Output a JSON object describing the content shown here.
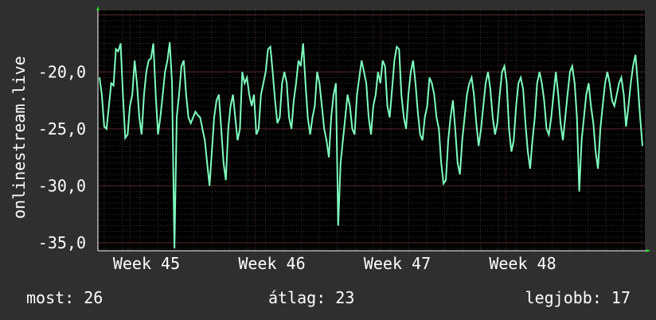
{
  "chart_data": {
    "type": "line",
    "ylabel": "onlinestream.live",
    "ylim": [
      -35.7,
      -14.6
    ],
    "yticks": [
      -20,
      -25,
      -30,
      -35
    ],
    "ytick_labels": [
      "-20,0",
      "-25,0",
      "-30,0",
      "-35,0"
    ],
    "xtick_labels": [
      "Week 45",
      "Week 46",
      "Week 47",
      "Week 48"
    ],
    "grid": true,
    "line_color": "#7fffbf",
    "series": [
      {
        "values": [
          -20.5,
          -22,
          -24.8,
          -25,
          -23,
          -21,
          -21.2,
          -18,
          -18.2,
          -17.5,
          -22,
          -25.8,
          -25.5,
          -23,
          -22,
          -19,
          -21,
          -24,
          -25.5,
          -22,
          -20,
          -19,
          -18.8,
          -17.5,
          -22,
          -25.5,
          -24,
          -22,
          -20,
          -19,
          -17.4,
          -21,
          -35.5,
          -24,
          -22,
          -19.5,
          -19,
          -22,
          -24,
          -24.5,
          -24,
          -23.5,
          -23.8,
          -24,
          -25,
          -26,
          -28,
          -30,
          -27,
          -24,
          -22.5,
          -22,
          -25,
          -28,
          -29.5,
          -25,
          -23,
          -22,
          -24,
          -26,
          -25,
          -20,
          -21,
          -20.5,
          -22,
          -23,
          -22,
          -25.5,
          -25,
          -22,
          -21,
          -20,
          -18,
          -17.8,
          -20,
          -22.5,
          -24.5,
          -24,
          -21,
          -20,
          -21,
          -24,
          -25,
          -22.5,
          -21,
          -19,
          -19.5,
          -17.5,
          -21,
          -24,
          -25.5,
          -24,
          -23,
          -20,
          -21,
          -23,
          -25,
          -26,
          -27.5,
          -24,
          -22,
          -21,
          -33.5,
          -28,
          -26,
          -24,
          -22,
          -23,
          -25,
          -25.5,
          -22,
          -20.5,
          -19,
          -20,
          -21,
          -24,
          -25.5,
          -23,
          -22,
          -20,
          -21,
          -19,
          -19.5,
          -23,
          -24,
          -21.5,
          -19,
          -17.8,
          -18,
          -22,
          -24,
          -25,
          -22,
          -20,
          -19,
          -21,
          -23.5,
          -25.5,
          -26,
          -24,
          -23,
          -20.5,
          -21,
          -22,
          -24,
          -25,
          -28,
          -29.8,
          -29.5,
          -26,
          -24,
          -22.5,
          -25,
          -28,
          -29,
          -26,
          -24,
          -22,
          -21,
          -20.5,
          -22,
          -24.5,
          -26.5,
          -25,
          -23,
          -21,
          -20,
          -21.5,
          -24,
          -25.5,
          -24.5,
          -22,
          -20,
          -19.5,
          -21,
          -25,
          -27,
          -26,
          -23,
          -21,
          -20.5,
          -21.5,
          -24.5,
          -27,
          -28.5,
          -26,
          -24,
          -21,
          -20,
          -21,
          -22.5,
          -25,
          -25.5,
          -24,
          -22,
          -20,
          -22,
          -24.5,
          -26,
          -24,
          -22,
          -20,
          -19.5,
          -21,
          -24,
          -30.5,
          -26,
          -24,
          -22,
          -21,
          -23,
          -24.5,
          -27,
          -28.5,
          -25,
          -23,
          -21,
          -20,
          -21,
          -22.5,
          -23,
          -22,
          -21,
          -20.5,
          -22,
          -24.8,
          -23,
          -21,
          -19.5,
          -18.5,
          -21,
          -24,
          -26.5
        ]
      }
    ]
  },
  "footer": {
    "current_label": "most:",
    "current_value": "26",
    "average_label": "átlag:",
    "average_value": "23",
    "best_label": "legjobb:",
    "best_value": "17"
  }
}
